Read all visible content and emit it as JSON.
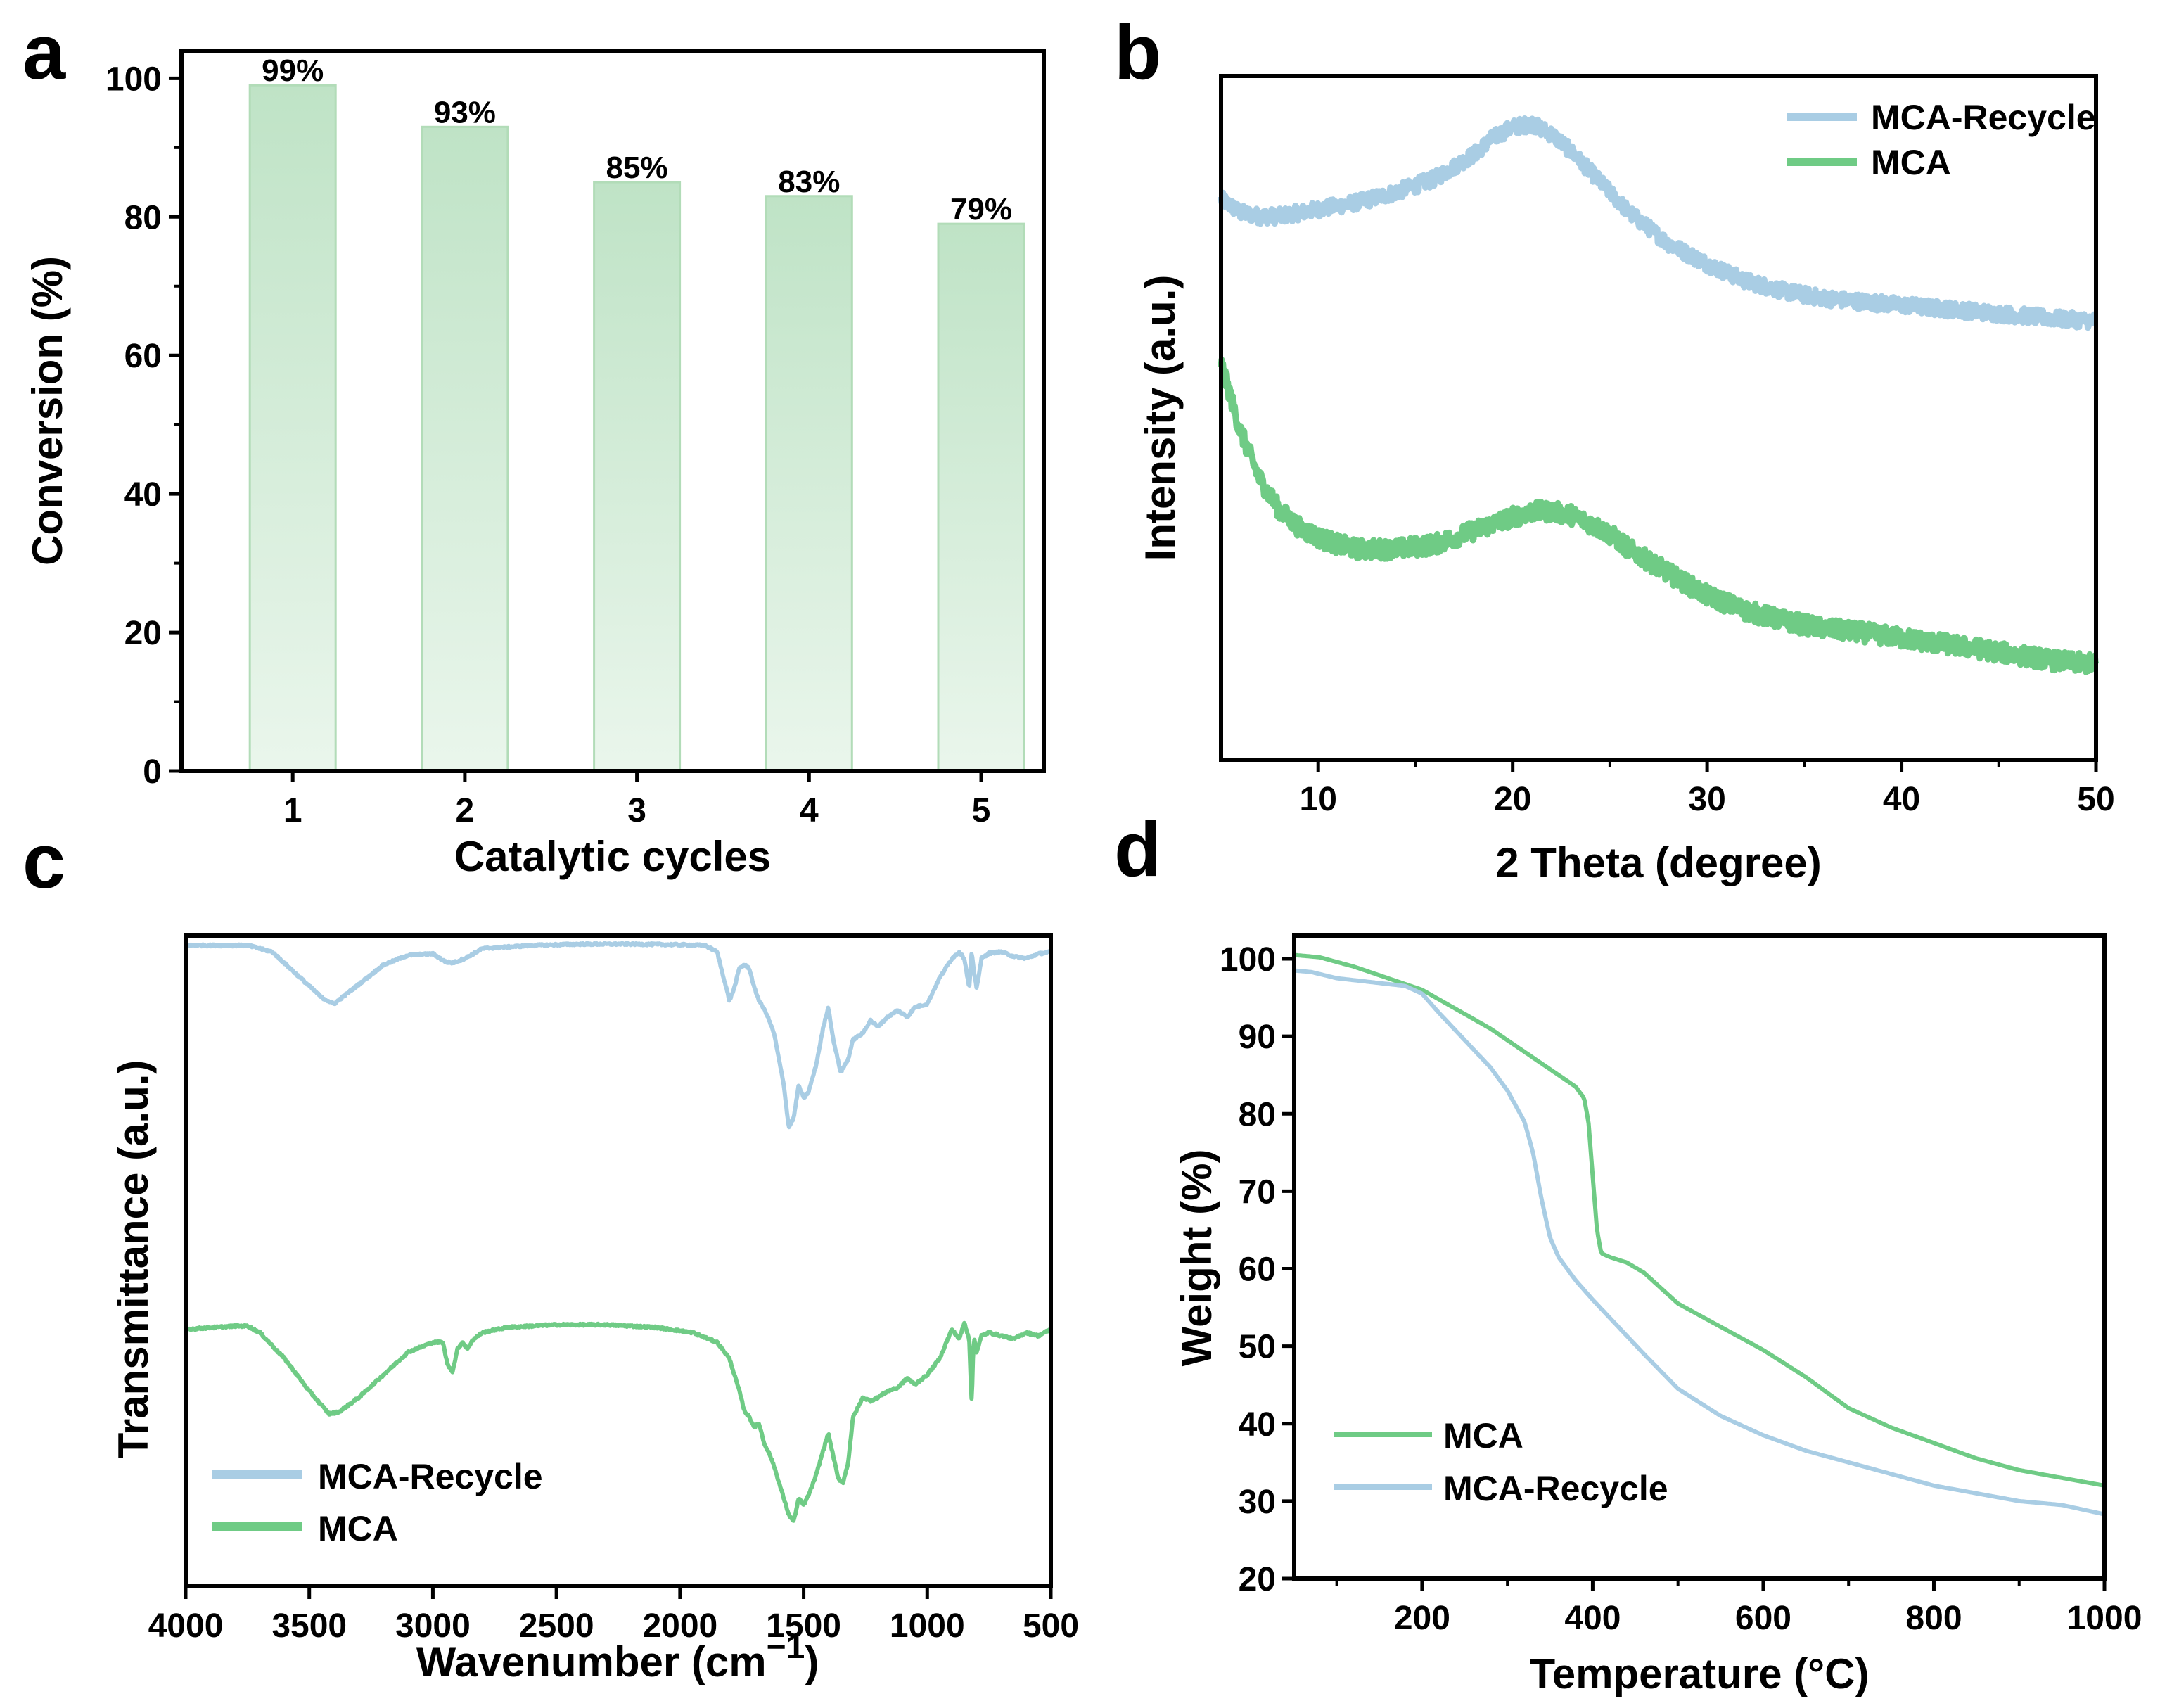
{
  "colors": {
    "blue": "#a9cde4",
    "green": "#6fcb85",
    "bar_fill": "#c6e6cb",
    "bar_edge": "#b2dcb8"
  },
  "panels": {
    "a": "a",
    "b": "b",
    "c": "c",
    "d": "d"
  },
  "chart_data": [
    {
      "id": "a",
      "type": "bar",
      "categories": [
        "1",
        "2",
        "3",
        "4",
        "5"
      ],
      "values": [
        99,
        93,
        85,
        83,
        79
      ],
      "data_labels": [
        "99%",
        "93%",
        "85%",
        "83%",
        "79%"
      ],
      "xlabel": "Catalytic cycles",
      "ylabel": "Conversion (%)",
      "ylim": [
        0,
        104
      ],
      "yticks": [
        0,
        20,
        40,
        60,
        80,
        100
      ],
      "ytick_labels": [
        "0",
        "20",
        "40",
        "60",
        "80",
        "100"
      ]
    },
    {
      "id": "b",
      "type": "line",
      "xlabel": "2 Theta (degree)",
      "ylabel": "Intensity (a.u.)",
      "xlim": [
        5,
        50
      ],
      "ylim": [
        0,
        100
      ],
      "xticks": [
        10,
        20,
        30,
        40,
        50
      ],
      "xtick_labels": [
        "10",
        "20",
        "30",
        "40",
        "50"
      ],
      "legend_position": "top-right",
      "series": [
        {
          "name": "MCA-Recycle",
          "color": "#a9cde4",
          "noise": 1.1,
          "x": [
            5,
            6,
            7,
            8,
            9,
            10,
            12,
            14,
            16,
            18,
            19,
            20,
            21,
            22,
            23,
            24,
            25,
            26,
            28,
            30,
            32,
            34,
            36,
            38,
            40,
            42,
            44,
            46,
            48,
            50
          ],
          "y": [
            82,
            80,
            79.5,
            79.5,
            80,
            80.5,
            81.5,
            83,
            85,
            88.5,
            91,
            92.5,
            93,
            91.5,
            89,
            86,
            83,
            80,
            75.5,
            72.5,
            70,
            68.5,
            67.5,
            67,
            66.5,
            66,
            65.5,
            65,
            64.5,
            64.2
          ]
        },
        {
          "name": "MCA",
          "color": "#6fcb85",
          "noise": 1.4,
          "x": [
            5,
            5.5,
            6,
            7,
            8,
            9,
            10,
            11,
            12,
            14,
            16,
            18,
            20,
            21,
            22,
            23,
            24,
            25,
            26,
            28,
            30,
            32,
            34,
            36,
            38,
            40,
            42,
            44,
            46,
            48,
            50
          ],
          "y": [
            58,
            53,
            48,
            41,
            36.5,
            34,
            32.5,
            31.5,
            30.8,
            30.8,
            31.5,
            33.5,
            35.5,
            36.3,
            36.3,
            35.8,
            34.5,
            33,
            30.8,
            27.3,
            24,
            21.8,
            20.3,
            19.2,
            18.6,
            17.8,
            17,
            16.2,
            15.3,
            14.4,
            14
          ]
        }
      ]
    },
    {
      "id": "c",
      "type": "line",
      "xlabel_main": "Wavenumber (cm",
      "xlabel_sup": "−1",
      "xlabel_end": ")",
      "ylabel": "Transmittance (a.u.)",
      "xlim": [
        4000,
        500
      ],
      "ylim": [
        0,
        100
      ],
      "xticks": [
        4000,
        3500,
        3000,
        2500,
        2000,
        1500,
        1000,
        500
      ],
      "xtick_labels": [
        "4000",
        "3500",
        "3000",
        "2500",
        "2000",
        "1500",
        "1000",
        "500"
      ],
      "legend_position": "bottom-left",
      "series": [
        {
          "name": "MCA-Recycle",
          "color": "#a9cde4",
          "noise": 0.15,
          "x": [
            4000,
            3750,
            3650,
            3550,
            3450,
            3400,
            3300,
            3200,
            3100,
            3000,
            2950,
            2920,
            2870,
            2800,
            2600,
            2400,
            2200,
            2000,
            1900,
            1850,
            1820,
            1800,
            1780,
            1760,
            1740,
            1720,
            1700,
            1680,
            1650,
            1620,
            1600,
            1580,
            1560,
            1540,
            1520,
            1500,
            1480,
            1450,
            1420,
            1400,
            1380,
            1350,
            1320,
            1300,
            1260,
            1230,
            1200,
            1160,
            1120,
            1080,
            1050,
            1000,
            950,
            900,
            870,
            850,
            830,
            820,
            810,
            800,
            780,
            750,
            700,
            650,
            600,
            550,
            500
          ],
          "y": [
            98.5,
            98.5,
            97.5,
            94,
            90.5,
            89.5,
            92.5,
            95.5,
            97,
            97.2,
            96,
            95.8,
            96.5,
            98,
            98.5,
            98.7,
            98.7,
            98.6,
            98.5,
            97.5,
            93,
            90,
            92,
            95,
            95.5,
            95,
            92,
            90,
            88,
            85,
            81,
            77,
            70.5,
            72,
            77,
            75,
            76,
            80,
            86,
            89,
            84,
            79,
            81,
            84,
            85,
            87,
            86,
            87.5,
            88.5,
            87.5,
            89,
            89.5,
            93.5,
            96.5,
            97.5,
            96.5,
            92,
            97.5,
            94,
            92,
            96.5,
            97.3,
            97.5,
            96.8,
            96.5,
            97.2,
            97.5
          ]
        },
        {
          "name": "MCA",
          "color": "#6fcb85",
          "noise": 0.15,
          "x": [
            4000,
            3800,
            3750,
            3700,
            3600,
            3500,
            3420,
            3380,
            3300,
            3200,
            3100,
            3000,
            2960,
            2940,
            2920,
            2900,
            2880,
            2860,
            2840,
            2800,
            2700,
            2500,
            2300,
            2100,
            1950,
            1850,
            1800,
            1760,
            1740,
            1720,
            1700,
            1680,
            1660,
            1640,
            1620,
            1600,
            1580,
            1560,
            1540,
            1520,
            1500,
            1480,
            1450,
            1420,
            1400,
            1380,
            1360,
            1340,
            1320,
            1300,
            1260,
            1230,
            1200,
            1160,
            1120,
            1080,
            1050,
            1000,
            950,
            900,
            870,
            850,
            830,
            820,
            815,
            810,
            800,
            780,
            750,
            700,
            650,
            600,
            550,
            500
          ],
          "y": [
            39.5,
            40,
            40,
            39,
            35,
            30,
            26.5,
            26.8,
            29,
            32.5,
            36,
            37.5,
            37.5,
            34,
            33,
            36.5,
            37.5,
            36.5,
            37.8,
            39,
            39.8,
            40.2,
            40.2,
            39.8,
            39,
            37.5,
            35,
            30,
            27,
            26,
            24.5,
            25,
            22,
            20.5,
            18.5,
            16,
            13.5,
            11,
            10,
            13.5,
            12.5,
            14,
            17,
            21,
            23.5,
            20,
            16.5,
            16,
            19,
            26,
            29,
            28.5,
            29,
            30,
            30.5,
            32,
            31,
            32.5,
            35,
            39.5,
            38,
            40.5,
            38,
            28,
            35,
            38,
            36,
            38.5,
            39,
            38.5,
            38,
            39,
            38.5,
            39.5
          ]
        }
      ]
    },
    {
      "id": "d",
      "type": "line",
      "xlabel": "Temperature (°C)",
      "ylabel": "Weight (%)",
      "xlim": [
        50,
        1000
      ],
      "ylim": [
        20,
        103
      ],
      "xticks": [
        200,
        400,
        600,
        800,
        1000
      ],
      "xtick_labels": [
        "200",
        "400",
        "600",
        "800",
        "1000"
      ],
      "yticks": [
        20,
        30,
        40,
        50,
        60,
        70,
        80,
        90,
        100
      ],
      "ytick_labels": [
        "20",
        "30",
        "40",
        "50",
        "60",
        "70",
        "80",
        "90",
        "100"
      ],
      "legend_position": "bottom-left",
      "series": [
        {
          "name": "MCA",
          "color": "#6fcb85",
          "noise": 0,
          "x": [
            50,
            80,
            120,
            160,
            200,
            240,
            280,
            320,
            360,
            380,
            390,
            395,
            400,
            405,
            410,
            420,
            440,
            460,
            480,
            500,
            550,
            600,
            650,
            700,
            750,
            800,
            850,
            900,
            950,
            1000
          ],
          "y": [
            100.5,
            100.2,
            99,
            97.5,
            96,
            93.5,
            91,
            88,
            85,
            83.5,
            82,
            79,
            72,
            65,
            62,
            61.5,
            60.8,
            59.5,
            57.5,
            55.5,
            52.5,
            49.5,
            46,
            42,
            39.5,
            37.5,
            35.5,
            34,
            33,
            32
          ]
        },
        {
          "name": "MCA-Recycle",
          "color": "#a9cde4",
          "noise": 0,
          "x": [
            50,
            70,
            100,
            140,
            180,
            200,
            220,
            250,
            280,
            300,
            320,
            330,
            340,
            350,
            360,
            380,
            400,
            430,
            460,
            500,
            550,
            600,
            650,
            700,
            750,
            800,
            850,
            900,
            950,
            1000
          ],
          "y": [
            98.5,
            98.3,
            97.5,
            97,
            96.5,
            95.5,
            93,
            89.5,
            86,
            83,
            79,
            75,
            69,
            64,
            61.5,
            58.5,
            56,
            52.5,
            49,
            44.5,
            41,
            38.5,
            36.5,
            35,
            33.5,
            32,
            31,
            30,
            29.5,
            28.3
          ]
        }
      ]
    }
  ]
}
